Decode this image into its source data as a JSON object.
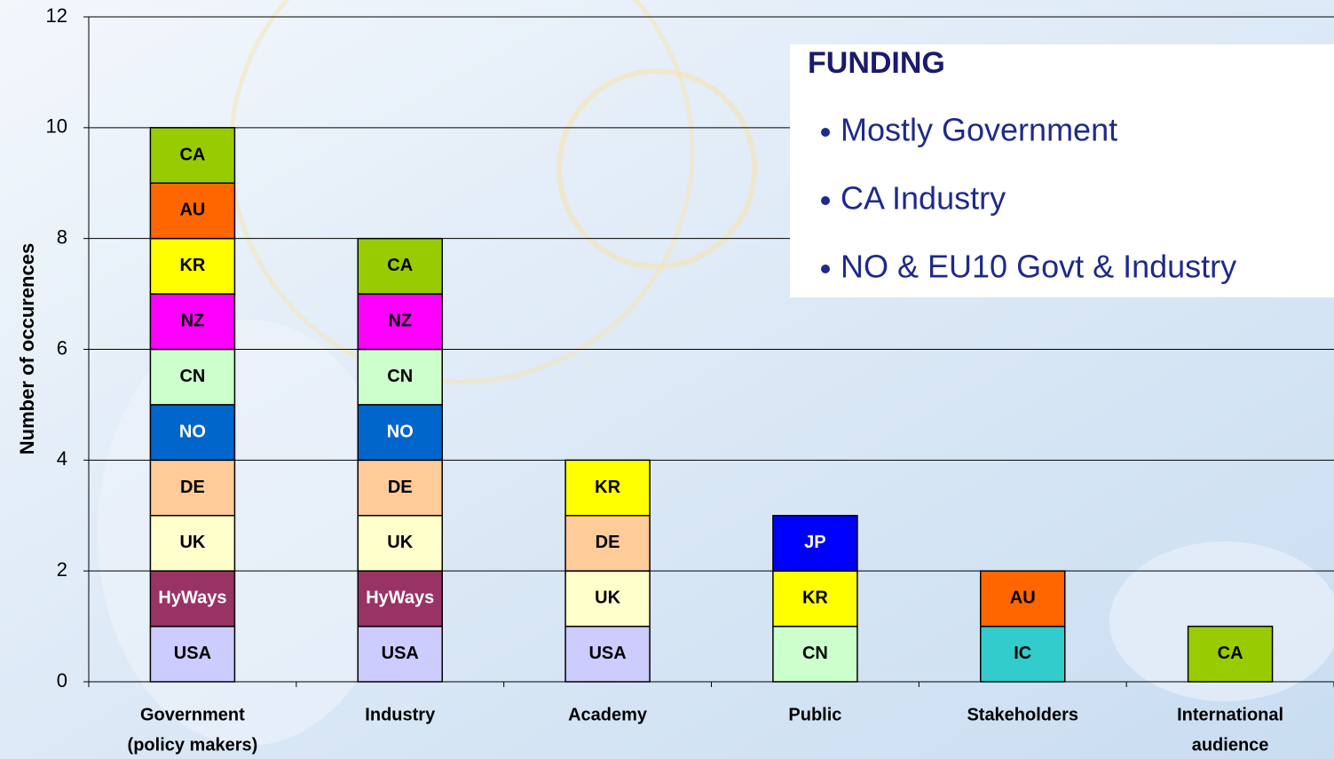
{
  "chart_data": {
    "type": "stacked_bar",
    "ylabel": "Number of occurences",
    "categories": [
      [
        "Government",
        "(policy makers)"
      ],
      [
        "Industry"
      ],
      [
        "Academy"
      ],
      [
        "Public"
      ],
      [
        "Stakeholders"
      ],
      [
        "International",
        "audience"
      ]
    ],
    "stacks": [
      [
        {
          "name": "USA",
          "value": 1,
          "color": "#ccccff"
        },
        {
          "name": "HyWays",
          "value": 1,
          "color": "#993366",
          "text_color": "#ffffff"
        },
        {
          "name": "UK",
          "value": 1,
          "color": "#ffffcc"
        },
        {
          "name": "DE",
          "value": 1,
          "color": "#ffcc99"
        },
        {
          "name": "NO",
          "value": 1,
          "color": "#0066cc",
          "text_color": "#ffffff"
        },
        {
          "name": "CN",
          "value": 1,
          "color": "#ccffcc"
        },
        {
          "name": "NZ",
          "value": 1,
          "color": "#ff00ff"
        },
        {
          "name": "KR",
          "value": 1,
          "color": "#ffff00"
        },
        {
          "name": "AU",
          "value": 1,
          "color": "#ff6600"
        },
        {
          "name": "CA",
          "value": 1,
          "color": "#99cc00"
        }
      ],
      [
        {
          "name": "USA",
          "value": 1,
          "color": "#ccccff"
        },
        {
          "name": "HyWays",
          "value": 1,
          "color": "#993366",
          "text_color": "#ffffff"
        },
        {
          "name": "UK",
          "value": 1,
          "color": "#ffffcc"
        },
        {
          "name": "DE",
          "value": 1,
          "color": "#ffcc99"
        },
        {
          "name": "NO",
          "value": 1,
          "color": "#0066cc",
          "text_color": "#ffffff"
        },
        {
          "name": "CN",
          "value": 1,
          "color": "#ccffcc"
        },
        {
          "name": "NZ",
          "value": 1,
          "color": "#ff00ff"
        },
        {
          "name": "CA",
          "value": 1,
          "color": "#99cc00"
        }
      ],
      [
        {
          "name": "USA",
          "value": 1,
          "color": "#ccccff"
        },
        {
          "name": "UK",
          "value": 1,
          "color": "#ffffcc"
        },
        {
          "name": "DE",
          "value": 1,
          "color": "#ffcc99"
        },
        {
          "name": "KR",
          "value": 1,
          "color": "#ffff00"
        }
      ],
      [
        {
          "name": "CN",
          "value": 1,
          "color": "#ccffcc"
        },
        {
          "name": "KR",
          "value": 1,
          "color": "#ffff00"
        },
        {
          "name": "JP",
          "value": 1,
          "color": "#0000ff",
          "text_color": "#ffffff"
        }
      ],
      [
        {
          "name": "IC",
          "value": 1,
          "color": "#33cccc"
        },
        {
          "name": "AU",
          "value": 1,
          "color": "#ff6600"
        }
      ],
      [
        {
          "name": "CA",
          "value": 1,
          "color": "#99cc00"
        }
      ]
    ],
    "ylim": [
      0,
      12
    ],
    "yticks": [
      0,
      2,
      4,
      6,
      8,
      10,
      12
    ],
    "grid": true,
    "annotation": {
      "title": "FUNDING",
      "items": [
        "Mostly Government",
        "CA Industry",
        "NO & EU10 Govt & Industry"
      ]
    }
  }
}
